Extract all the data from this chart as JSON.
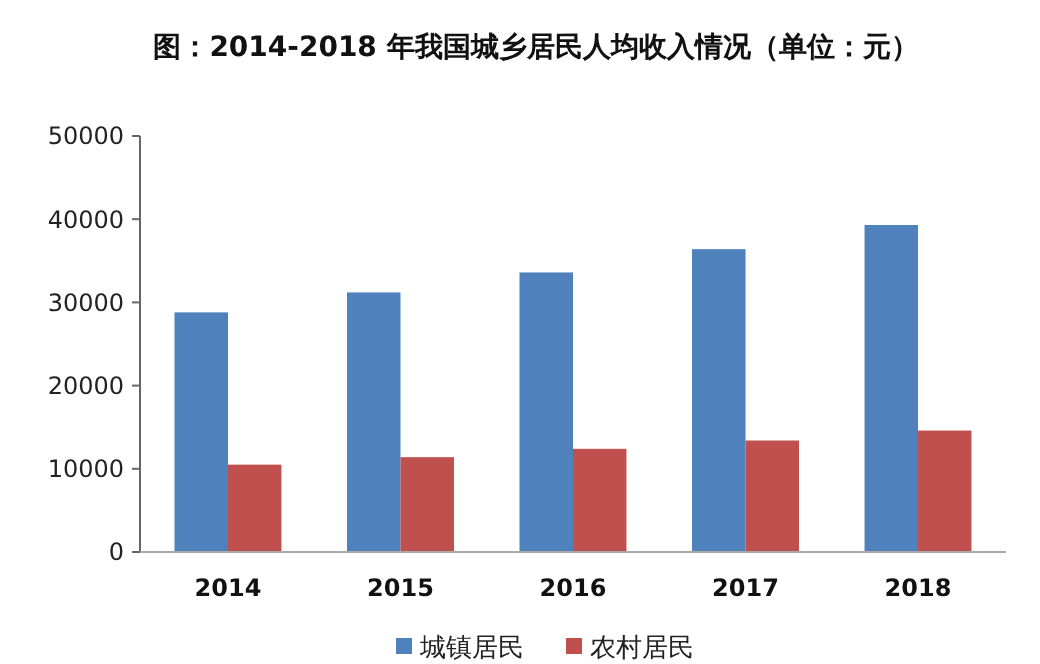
{
  "chart_data": {
    "type": "bar",
    "title": "图：2014-2018 年我国城乡居民人均收入情况（单位：元）",
    "categories": [
      "2014",
      "2015",
      "2016",
      "2017",
      "2018"
    ],
    "series": [
      {
        "name": "城镇居民",
        "color": "#4f81bd",
        "values": [
          28800,
          31200,
          33600,
          36400,
          39300
        ]
      },
      {
        "name": "农村居民",
        "color": "#c0504d",
        "values": [
          10500,
          11400,
          12400,
          13400,
          14600
        ]
      }
    ],
    "ylim": [
      0,
      50000
    ],
    "yticks": [
      0,
      10000,
      20000,
      30000,
      40000,
      50000
    ],
    "grid": false,
    "legend": "bottom"
  }
}
